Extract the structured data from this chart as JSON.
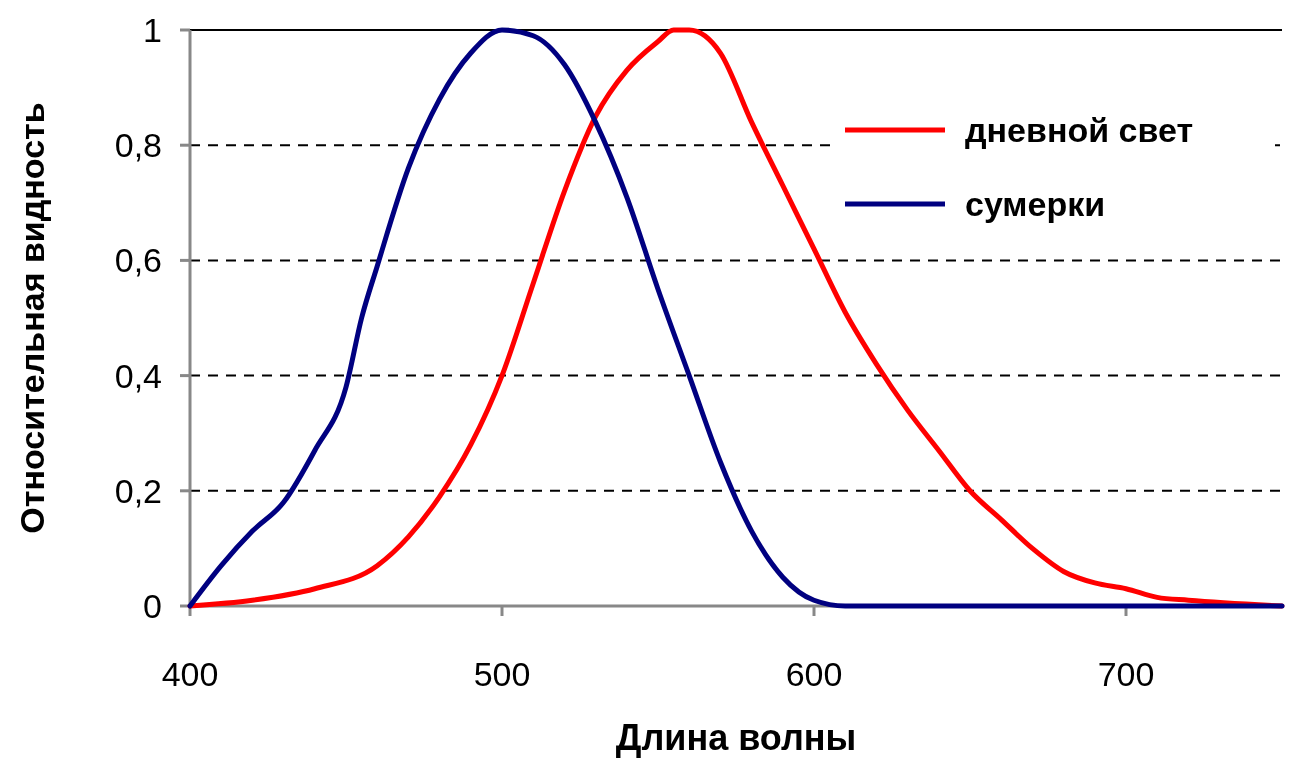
{
  "chart_data": {
    "type": "line",
    "xlabel": "Длина волны",
    "ylabel": "Относительная видность",
    "xlim": [
      400,
      750
    ],
    "xticks": [
      400,
      500,
      600,
      700
    ],
    "ylim": [
      0,
      1
    ],
    "yticks": [
      0,
      {
        "value": 0.2,
        "label": "0,2"
      },
      {
        "value": 0.4,
        "label": "0,4"
      },
      {
        "value": 0.6,
        "label": "0,6"
      },
      {
        "value": 0.8,
        "label": "0,8"
      },
      1
    ],
    "grid": "y",
    "legend": "top right",
    "marker": "none",
    "line_style": "solid",
    "series": [
      {
        "name": "дневной свет",
        "color": "#ff0000",
        "x": [
          400,
          420,
          440,
          460,
          470,
          480,
          490,
          500,
          510,
          520,
          530,
          540,
          550,
          555,
          560,
          570,
          580,
          590,
          600,
          610,
          620,
          630,
          640,
          650,
          660,
          670,
          680,
          690,
          700,
          710,
          720,
          750
        ],
        "values": [
          0,
          0.01,
          0.03,
          0.07,
          0.12,
          0.19,
          0.28,
          0.4,
          0.56,
          0.72,
          0.85,
          0.93,
          0.98,
          1,
          1,
          0.96,
          0.84,
          0.73,
          0.62,
          0.51,
          0.42,
          0.34,
          0.27,
          0.2,
          0.15,
          0.1,
          0.06,
          0.04,
          0.03,
          0.015,
          0.01,
          0
        ]
      },
      {
        "name": "сумерки",
        "color": "#000080",
        "x": [
          400,
          410,
          420,
          430,
          440,
          450,
          455,
          460,
          470,
          480,
          490,
          500,
          510,
          520,
          530,
          540,
          550,
          560,
          570,
          580,
          590,
          600,
          610,
          750
        ],
        "values": [
          0,
          0.07,
          0.13,
          0.18,
          0.27,
          0.38,
          0.5,
          0.59,
          0.76,
          0.88,
          0.96,
          1,
          0.99,
          0.94,
          0.84,
          0.71,
          0.55,
          0.4,
          0.25,
          0.13,
          0.05,
          0.01,
          0,
          0
        ]
      }
    ]
  }
}
